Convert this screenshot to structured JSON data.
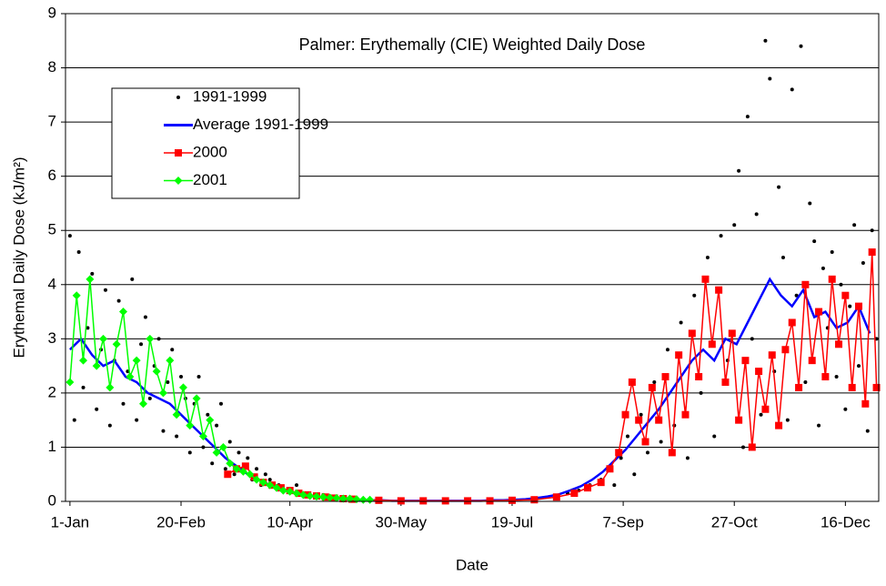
{
  "chart_data": {
    "type": "line",
    "title": "Palmer: Erythemally (CIE) Weighted Daily Dose",
    "x_label": "Date",
    "y_label": "Erythemal Daily Dose (kJ/m²)",
    "xlim": [
      -1,
      365
    ],
    "xticks": [
      {
        "value": 1,
        "label": "1-Jan"
      },
      {
        "value": 51,
        "label": "20-Feb"
      },
      {
        "value": 100,
        "label": "10-Apr"
      },
      {
        "value": 150,
        "label": "30-May"
      },
      {
        "value": 200,
        "label": "19-Jul"
      },
      {
        "value": 250,
        "label": "7-Sep"
      },
      {
        "value": 300,
        "label": "27-Oct"
      },
      {
        "value": 350,
        "label": "16-Dec"
      }
    ],
    "ylim": [
      0,
      9
    ],
    "yticks": [
      0,
      1,
      2,
      3,
      4,
      5,
      6,
      7,
      8,
      9
    ],
    "grid": true,
    "legend": "upper left",
    "series": [
      {
        "name": "1991-1999",
        "type": "scatter",
        "color": "#000000",
        "marker": "dot",
        "x": [
          1,
          3,
          5,
          7,
          9,
          11,
          13,
          15,
          17,
          19,
          21,
          23,
          25,
          27,
          29,
          31,
          33,
          35,
          37,
          39,
          41,
          43,
          45,
          47,
          49,
          51,
          53,
          55,
          57,
          59,
          61,
          63,
          65,
          67,
          69,
          71,
          73,
          75,
          77,
          79,
          81,
          83,
          85,
          87,
          89,
          91,
          95,
          99,
          103,
          107,
          111,
          115,
          120,
          125,
          130,
          140,
          150,
          160,
          170,
          180,
          190,
          200,
          210,
          220,
          225,
          230,
          235,
          240,
          243,
          246,
          249,
          252,
          255,
          258,
          261,
          264,
          267,
          270,
          273,
          276,
          279,
          282,
          285,
          288,
          291,
          294,
          297,
          300,
          302,
          304,
          306,
          308,
          310,
          312,
          314,
          316,
          318,
          320,
          322,
          324,
          326,
          328,
          330,
          332,
          334,
          336,
          338,
          340,
          342,
          344,
          346,
          348,
          350,
          352,
          354,
          356,
          358,
          360,
          362,
          364
        ],
        "values": [
          4.9,
          1.5,
          4.6,
          2.1,
          3.2,
          4.2,
          1.7,
          2.8,
          3.9,
          1.4,
          2.6,
          3.7,
          1.8,
          2.4,
          4.1,
          1.5,
          2.9,
          3.4,
          1.9,
          2.5,
          3.0,
          1.3,
          2.2,
          2.8,
          1.2,
          2.3,
          1.9,
          0.9,
          1.8,
          2.3,
          1.0,
          1.6,
          0.7,
          1.4,
          1.8,
          0.6,
          1.1,
          0.5,
          0.9,
          0.6,
          0.8,
          0.4,
          0.6,
          0.3,
          0.5,
          0.4,
          0.3,
          0.2,
          0.3,
          0.15,
          0.1,
          0.12,
          0.08,
          0.05,
          0.04,
          0.02,
          0.01,
          0.01,
          0.01,
          0.01,
          0.02,
          0.03,
          0.05,
          0.1,
          0.15,
          0.2,
          0.3,
          0.4,
          0.6,
          0.3,
          0.8,
          1.2,
          0.5,
          1.6,
          0.9,
          2.2,
          1.1,
          2.8,
          1.4,
          3.3,
          0.8,
          3.8,
          2.0,
          4.5,
          1.2,
          4.9,
          2.6,
          5.1,
          6.1,
          1.0,
          7.1,
          3.0,
          5.3,
          1.6,
          8.5,
          7.8,
          2.4,
          5.8,
          4.5,
          1.5,
          7.6,
          3.8,
          8.4,
          2.2,
          5.5,
          4.8,
          1.4,
          4.3,
          3.2,
          4.6,
          2.3,
          4.0,
          1.7,
          3.6,
          5.1,
          2.5,
          4.4,
          1.3,
          5.0,
          3.0
        ]
      },
      {
        "name": "Average 1991-1999",
        "type": "line",
        "color": "#0000ff",
        "marker": "none",
        "x": [
          1,
          6,
          11,
          16,
          21,
          26,
          31,
          36,
          41,
          46,
          51,
          56,
          61,
          66,
          71,
          76,
          81,
          86,
          91,
          96,
          101,
          106,
          111,
          116,
          121,
          126,
          131,
          136,
          141,
          146,
          151,
          156,
          161,
          166,
          171,
          176,
          181,
          186,
          191,
          196,
          201,
          206,
          211,
          216,
          221,
          226,
          231,
          236,
          241,
          246,
          251,
          256,
          261,
          266,
          271,
          276,
          281,
          286,
          291,
          296,
          301,
          306,
          311,
          316,
          321,
          326,
          331,
          336,
          341,
          346,
          351,
          356,
          361
        ],
        "values": [
          2.8,
          3.0,
          2.7,
          2.5,
          2.6,
          2.3,
          2.2,
          2.0,
          1.9,
          1.8,
          1.6,
          1.4,
          1.2,
          1.0,
          0.8,
          0.65,
          0.5,
          0.4,
          0.3,
          0.22,
          0.17,
          0.12,
          0.09,
          0.07,
          0.05,
          0.04,
          0.03,
          0.02,
          0.02,
          0.01,
          0.01,
          0.01,
          0.01,
          0.01,
          0.01,
          0.01,
          0.01,
          0.01,
          0.02,
          0.02,
          0.03,
          0.04,
          0.06,
          0.09,
          0.13,
          0.2,
          0.28,
          0.4,
          0.55,
          0.75,
          0.95,
          1.2,
          1.45,
          1.7,
          2.0,
          2.3,
          2.6,
          2.8,
          2.6,
          3.0,
          2.9,
          3.3,
          3.7,
          4.1,
          3.8,
          3.6,
          3.9,
          3.4,
          3.5,
          3.2,
          3.3,
          3.6,
          3.1
        ]
      },
      {
        "name": "2000",
        "type": "line",
        "color": "#ff0000",
        "marker": "square",
        "x": [
          72,
          76,
          80,
          84,
          88,
          92,
          96,
          100,
          104,
          108,
          112,
          116,
          120,
          124,
          128,
          140,
          150,
          160,
          170,
          180,
          190,
          200,
          210,
          220,
          228,
          234,
          240,
          244,
          248,
          251,
          254,
          257,
          260,
          263,
          266,
          269,
          272,
          275,
          278,
          281,
          284,
          287,
          290,
          293,
          296,
          299,
          302,
          305,
          308,
          311,
          314,
          317,
          320,
          323,
          326,
          329,
          332,
          335,
          338,
          341,
          344,
          347,
          350,
          353,
          356,
          359,
          362,
          364
        ],
        "values": [
          0.5,
          0.6,
          0.65,
          0.45,
          0.35,
          0.3,
          0.25,
          0.2,
          0.15,
          0.12,
          0.1,
          0.08,
          0.06,
          0.05,
          0.04,
          0.02,
          0.01,
          0.01,
          0.01,
          0.01,
          0.01,
          0.02,
          0.03,
          0.08,
          0.15,
          0.25,
          0.35,
          0.6,
          0.9,
          1.6,
          2.2,
          1.5,
          1.1,
          2.1,
          1.5,
          2.3,
          0.9,
          2.7,
          1.6,
          3.1,
          2.3,
          4.1,
          2.9,
          3.9,
          2.2,
          3.1,
          1.5,
          2.6,
          1.0,
          2.4,
          1.7,
          2.7,
          1.4,
          2.8,
          3.3,
          2.1,
          4.0,
          2.6,
          3.5,
          2.3,
          4.1,
          2.9,
          3.8,
          2.1,
          3.6,
          1.8,
          4.6,
          2.1
        ]
      },
      {
        "name": "2001",
        "type": "line",
        "color": "#00ff00",
        "marker": "diamond",
        "x": [
          1,
          4,
          7,
          10,
          13,
          16,
          19,
          22,
          25,
          28,
          31,
          34,
          37,
          40,
          43,
          46,
          49,
          52,
          55,
          58,
          61,
          64,
          67,
          70,
          73,
          76,
          79,
          82,
          85,
          88,
          91,
          94,
          97,
          100,
          103,
          106,
          109,
          112,
          115,
          118,
          121,
          124,
          127,
          130,
          133,
          136
        ],
        "values": [
          2.2,
          3.8,
          2.6,
          4.1,
          2.5,
          3.0,
          2.1,
          2.9,
          3.5,
          2.3,
          2.6,
          1.8,
          3.0,
          2.4,
          2.0,
          2.6,
          1.6,
          2.1,
          1.4,
          1.9,
          1.2,
          1.5,
          0.9,
          1.0,
          0.7,
          0.6,
          0.55,
          0.5,
          0.4,
          0.35,
          0.3,
          0.25,
          0.2,
          0.18,
          0.15,
          0.12,
          0.1,
          0.09,
          0.08,
          0.07,
          0.06,
          0.05,
          0.05,
          0.04,
          0.03,
          0.03
        ]
      }
    ]
  }
}
